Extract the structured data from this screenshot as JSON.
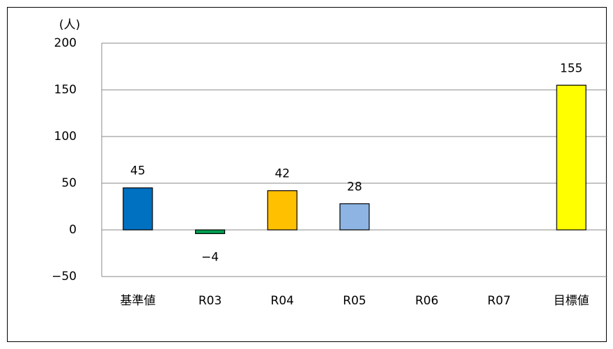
{
  "chart_data": {
    "type": "bar",
    "y_axis_label": "(人)",
    "categories": [
      "基準値",
      "R03",
      "R04",
      "R05",
      "R06",
      "R07",
      "目標値"
    ],
    "values": [
      45,
      -4,
      42,
      28,
      null,
      null,
      155
    ],
    "value_labels": [
      "45",
      "−4",
      "42",
      "28",
      null,
      null,
      "155"
    ],
    "colors": [
      "#0070c0",
      "#00a050",
      "#ffc000",
      "#8db4e2",
      null,
      null,
      "#ffff00"
    ],
    "ylim": [
      -50,
      200
    ],
    "yticks": [
      {
        "value": -50,
        "label": "−50"
      },
      0,
      50,
      100,
      150,
      200
    ],
    "grid": true
  }
}
